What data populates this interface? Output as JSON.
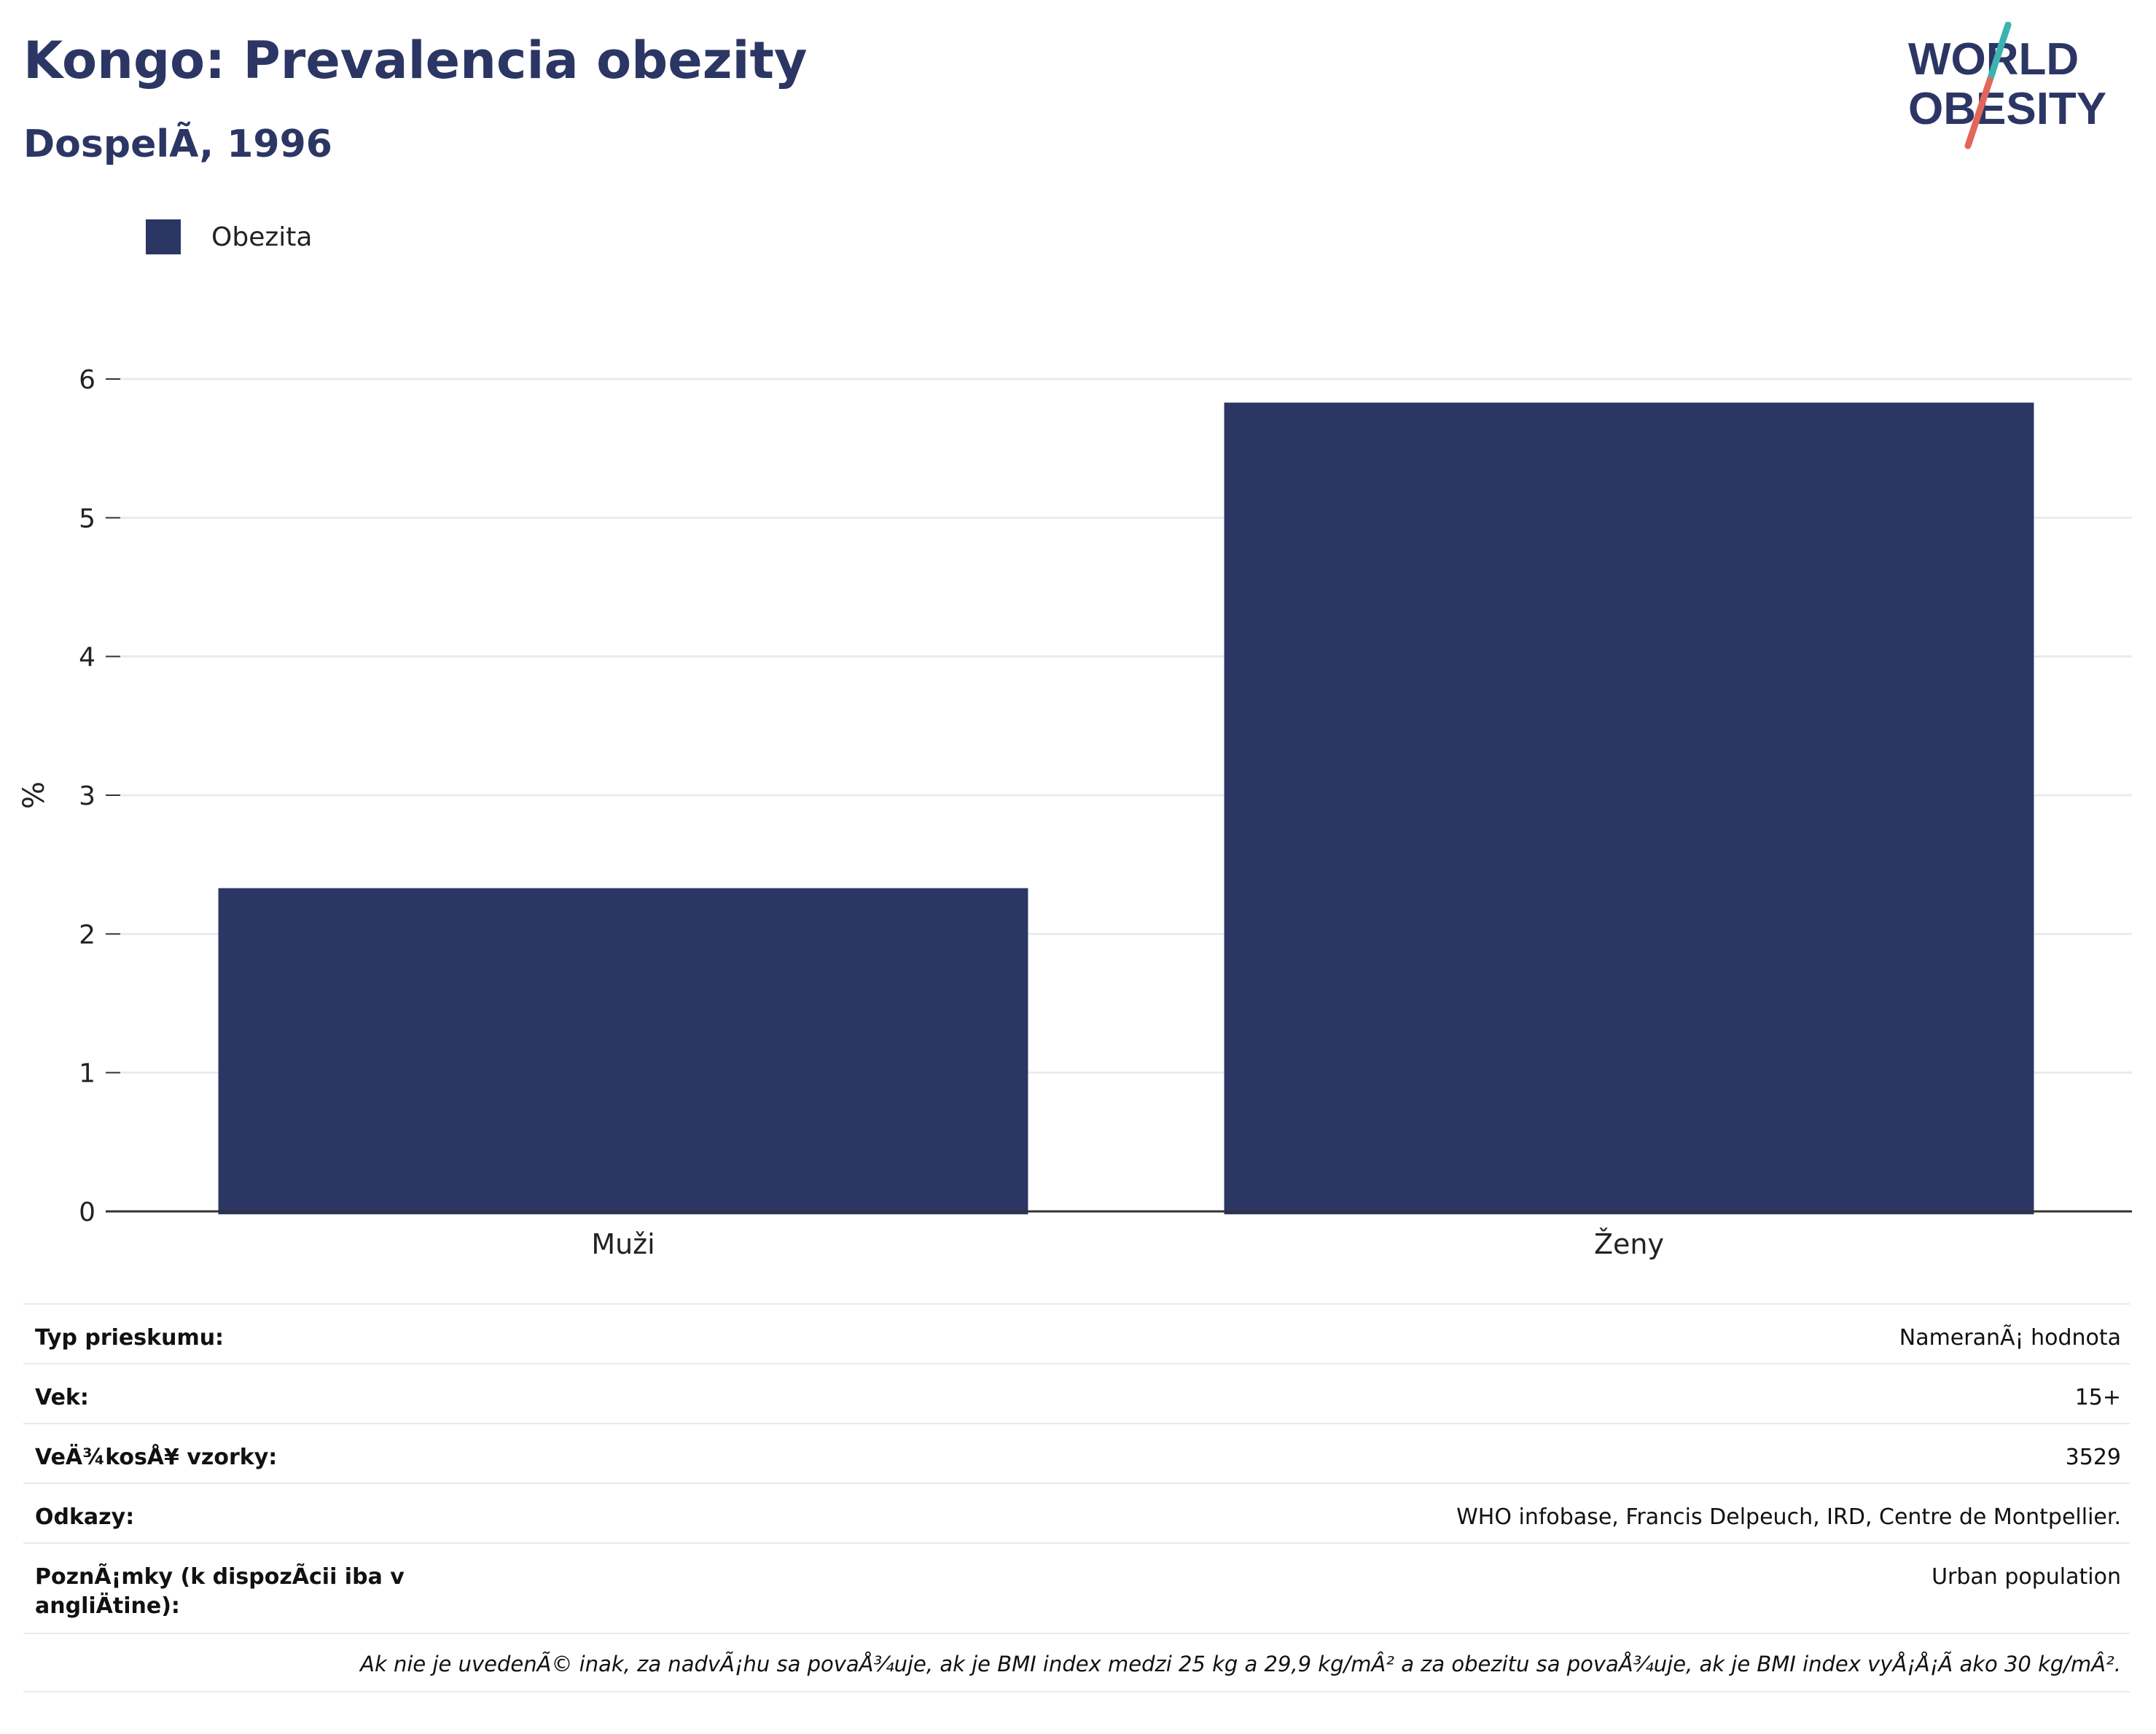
{
  "header": {
    "title": "Kongo: Prevalencia obezity",
    "subtitle": "DospelÃ, 1996"
  },
  "logo": {
    "line1": "WORLD",
    "line2": "OBESITY",
    "accent_top": "#3bb3b0",
    "accent_bottom": "#e2675a",
    "color": "#2b3664"
  },
  "legend": {
    "items": [
      {
        "label": "Obezita",
        "color": "#2b3664"
      }
    ]
  },
  "chart_data": {
    "type": "bar",
    "categories": [
      "Muži",
      "Ženy"
    ],
    "series": [
      {
        "name": "Obezita",
        "values": [
          2.33,
          5.83
        ],
        "color": "#2b3664"
      }
    ],
    "title": "Kongo: Prevalencia obezity",
    "subtitle": "DospelÃ, 1996",
    "xlabel": "",
    "ylabel": "%",
    "ylim": [
      0,
      6
    ],
    "yticks": [
      0,
      1,
      2,
      3,
      4,
      5,
      6
    ],
    "grid": true,
    "legend_position": "top-left"
  },
  "info": {
    "rows": [
      {
        "key": "Typ prieskumu:",
        "value": "NameranÃ¡ hodnota"
      },
      {
        "key": "Vek:",
        "value": "15+"
      },
      {
        "key": "VeÄ¾kosÅ¥ vzorky:",
        "value": "3529"
      },
      {
        "key": "Odkazy:",
        "value": "WHO infobase, Francis Delpeuch, IRD, Centre de Montpellier."
      },
      {
        "key": "PoznÃ¡mky (k dispozÃcii iba v angliÄ\btine):",
        "value": "Urban population"
      }
    ],
    "note": "Ak nie je uvedenÃ© inak, za nadvÃ¡hu sa povaÅ¾uje, ak je BMI index medzi 25 kg a 29,9 kg/mÂ² a za obezitu sa povaÅ¾uje, ak je BMI index vyÅ¡Å¡Ã ako 30 kg/mÂ²."
  }
}
